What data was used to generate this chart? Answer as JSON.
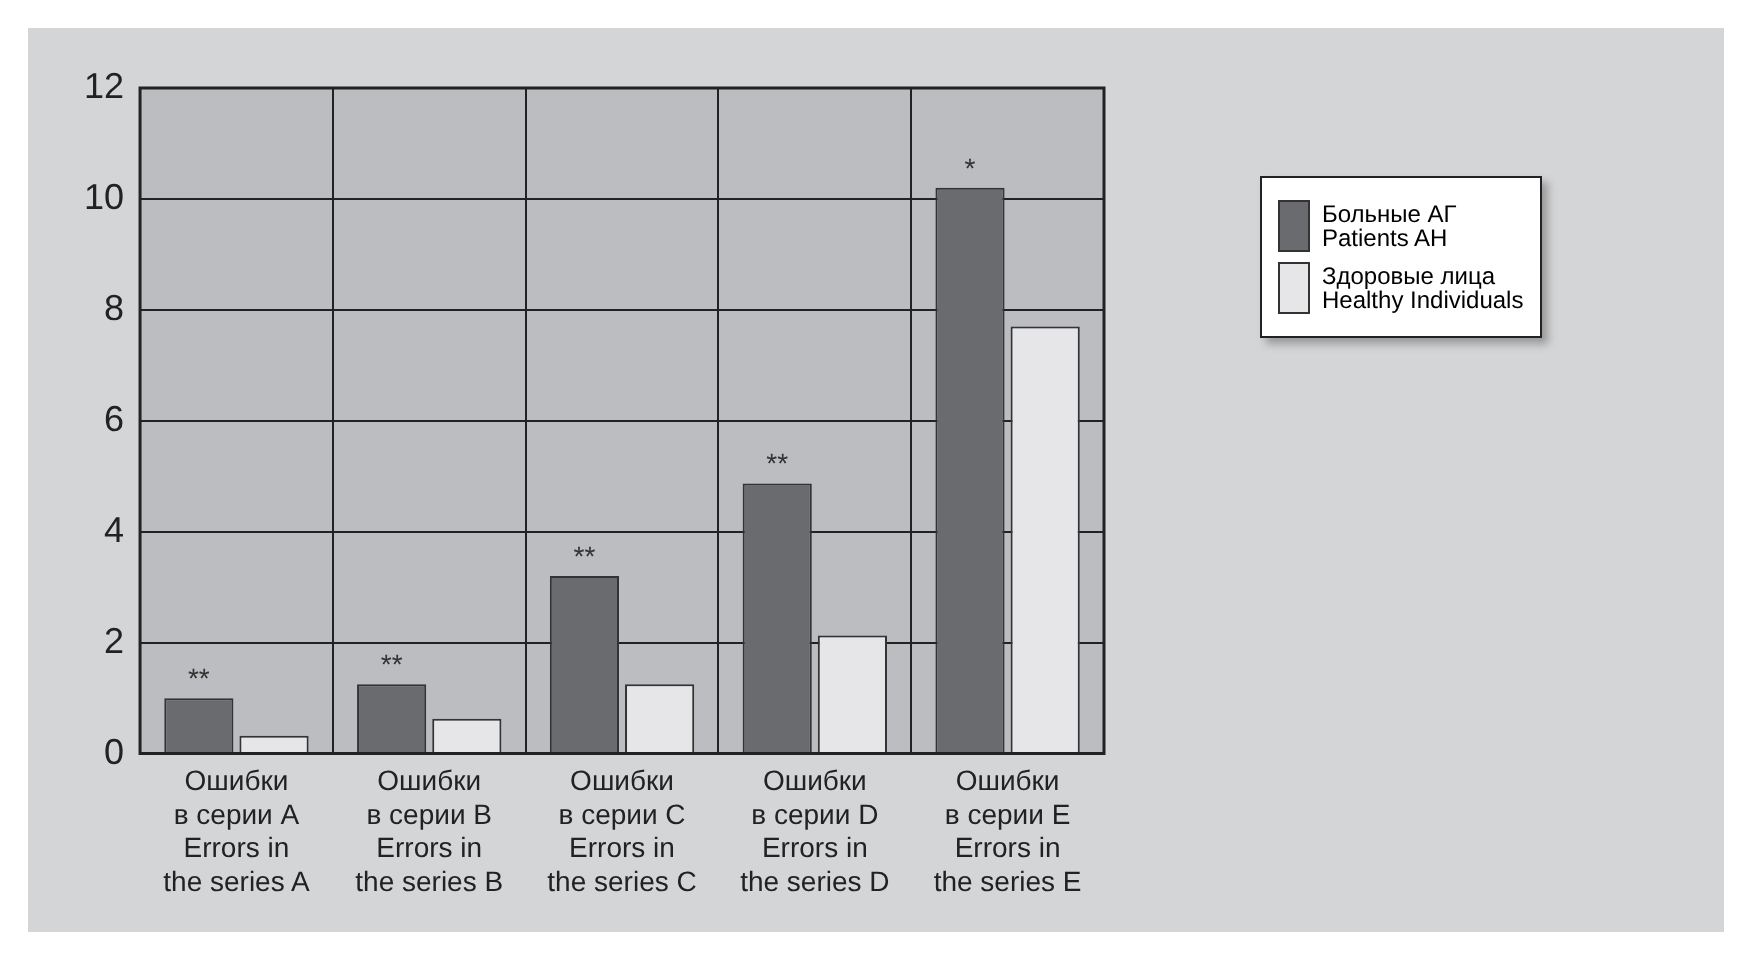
{
  "chart_data": {
    "type": "bar",
    "categories": [
      "Ошибки\nв серии A\nErrors in\nthe series A",
      "Ошибки\nв серии B\nErrors in\nthe series B",
      "Ошибки\nв серии C\nErrors in\nthe series C",
      "Ошибки\nв серии D\nErrors in\nthe series D",
      "Ошибки\nв серии E\nErrors in\nthe series E"
    ],
    "series": [
      {
        "name": "Больные АГ\nPatients AH",
        "color": "#6a6b6f",
        "values": [
          1.0,
          1.25,
          3.2,
          4.87,
          10.2
        ]
      },
      {
        "name": "Здоровые лица\nHealthy Individuals",
        "color": "#e6e6e8",
        "values": [
          0.32,
          0.63,
          1.25,
          2.13,
          7.7
        ]
      }
    ],
    "ylim": [
      0,
      12
    ],
    "yticks": [
      0,
      2,
      4,
      6,
      8,
      10,
      12
    ],
    "grid": true,
    "legend": "right",
    "annotations": [
      {
        "text": "**",
        "x": "Ошибки\nв серии A\nErrors in\nthe series A",
        "y": 1.0
      },
      {
        "text": "**",
        "x": "Ошибки\nв серии B\nErrors in\nthe series B",
        "y": 1.25
      },
      {
        "text": "**",
        "x": "Ошибки\nв серии C\nErrors in\nthe series C",
        "y": 3.2
      },
      {
        "text": "**",
        "x": "Ошибки\nв серии D\nErrors in\nthe series D",
        "y": 4.87
      },
      {
        "text": "*",
        "x": "Ошибки\nв серии E\nErrors in\nthe series E",
        "y": 10.2
      }
    ]
  }
}
